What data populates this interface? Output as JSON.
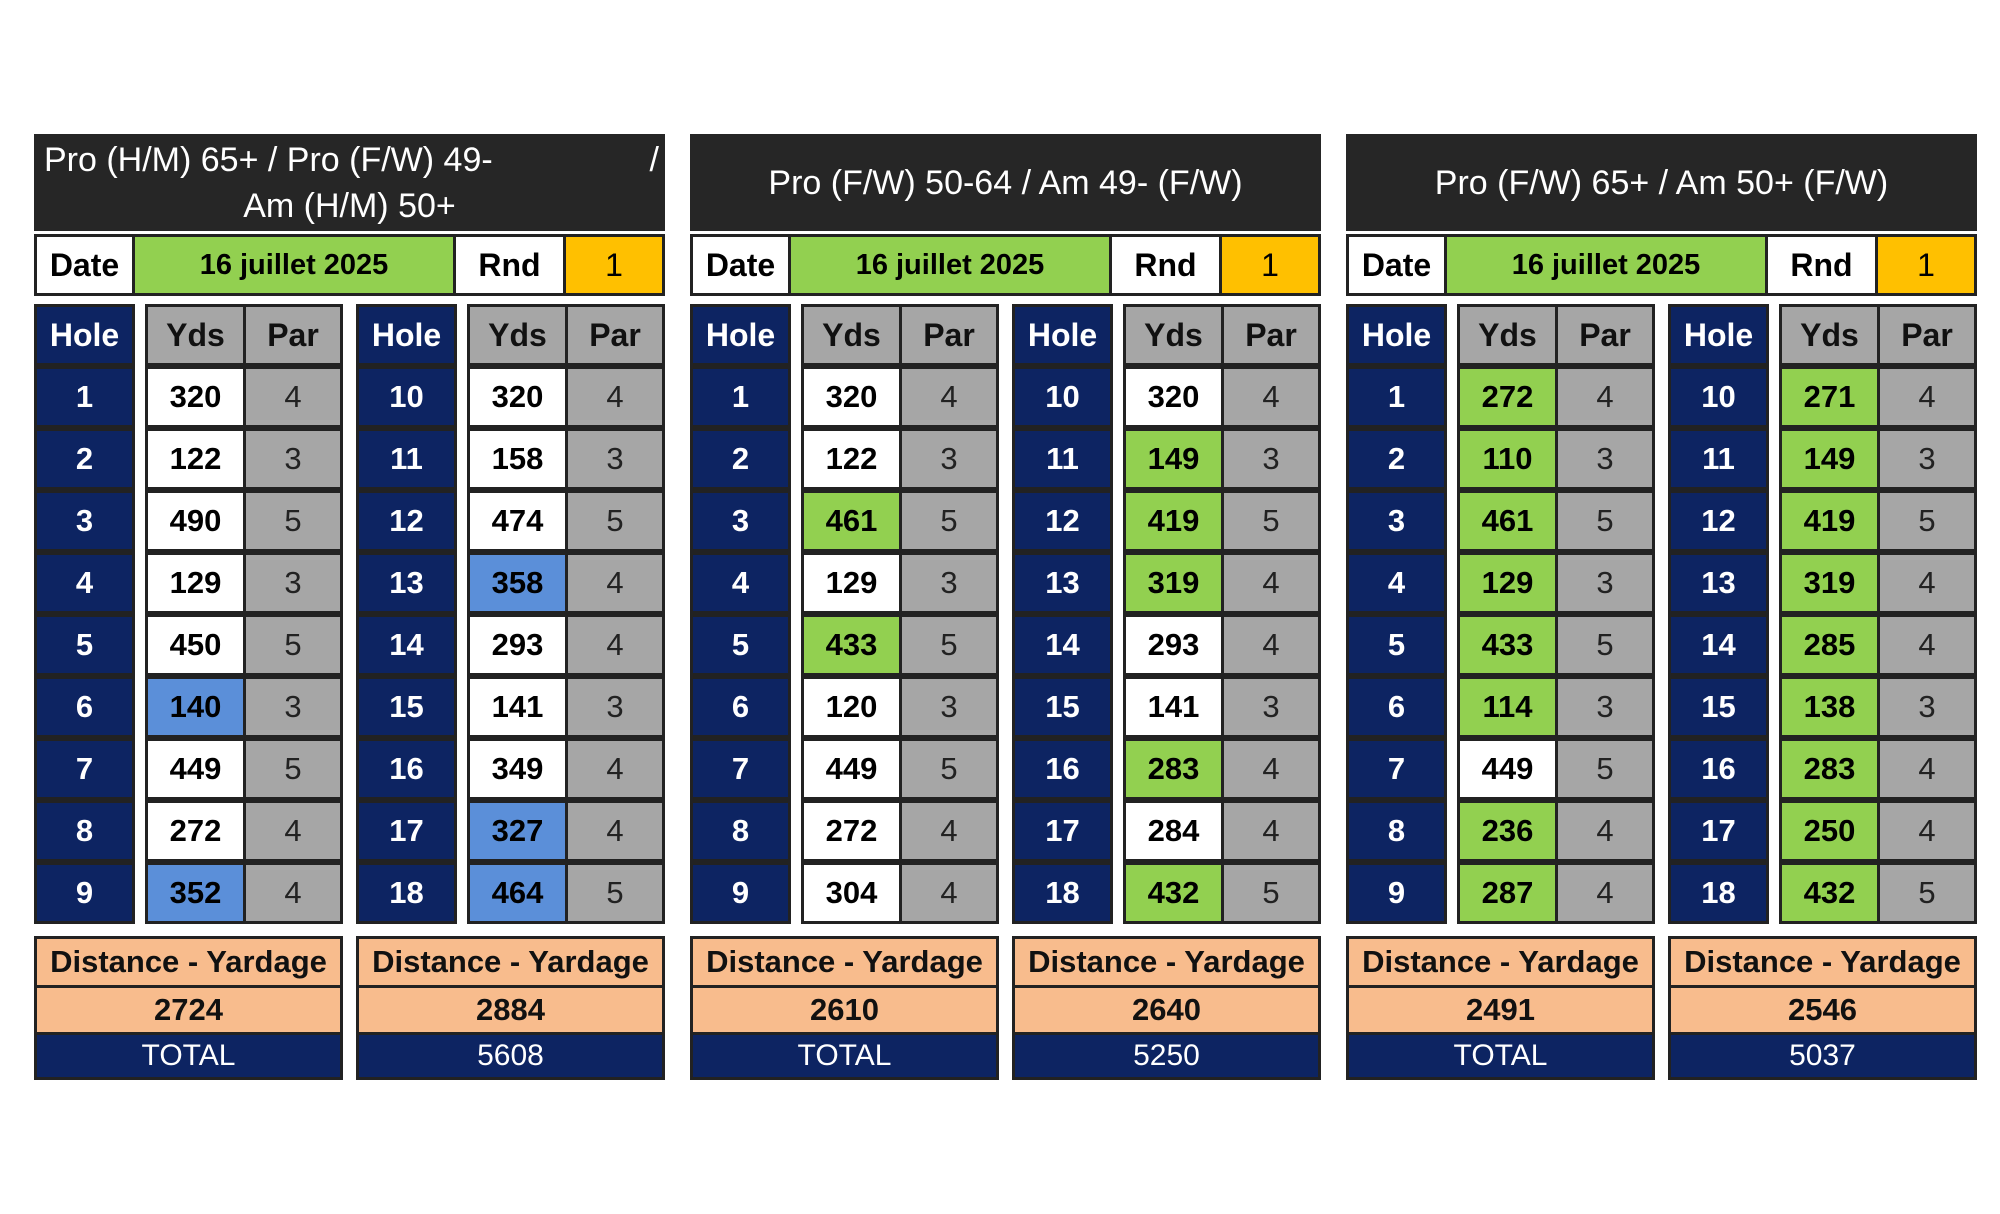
{
  "cards": [
    {
      "title_line1_left": "Pro (H/M) 65+ / Pro (F/W) 49-",
      "title_line1_right": "/",
      "title_line2": "Am (H/M) 50+",
      "date_label": "Date",
      "date_value": "16 juillet 2025",
      "rnd_label": "Rnd",
      "rnd_value": "1",
      "headers": {
        "hole": "Hole",
        "yds": "Yds",
        "par": "Par"
      },
      "front": [
        {
          "hole": "1",
          "yds": "320",
          "par": "4",
          "color": "w"
        },
        {
          "hole": "2",
          "yds": "122",
          "par": "3",
          "color": "w"
        },
        {
          "hole": "3",
          "yds": "490",
          "par": "5",
          "color": "w"
        },
        {
          "hole": "4",
          "yds": "129",
          "par": "3",
          "color": "w"
        },
        {
          "hole": "5",
          "yds": "450",
          "par": "5",
          "color": "w"
        },
        {
          "hole": "6",
          "yds": "140",
          "par": "3",
          "color": "b"
        },
        {
          "hole": "7",
          "yds": "449",
          "par": "5",
          "color": "w"
        },
        {
          "hole": "8",
          "yds": "272",
          "par": "4",
          "color": "w"
        },
        {
          "hole": "9",
          "yds": "352",
          "par": "4",
          "color": "b"
        }
      ],
      "back": [
        {
          "hole": "10",
          "yds": "320",
          "par": "4",
          "color": "w"
        },
        {
          "hole": "11",
          "yds": "158",
          "par": "3",
          "color": "w"
        },
        {
          "hole": "12",
          "yds": "474",
          "par": "5",
          "color": "w"
        },
        {
          "hole": "13",
          "yds": "358",
          "par": "4",
          "color": "b"
        },
        {
          "hole": "14",
          "yds": "293",
          "par": "4",
          "color": "w"
        },
        {
          "hole": "15",
          "yds": "141",
          "par": "3",
          "color": "w"
        },
        {
          "hole": "16",
          "yds": "349",
          "par": "4",
          "color": "w"
        },
        {
          "hole": "17",
          "yds": "327",
          "par": "4",
          "color": "b"
        },
        {
          "hole": "18",
          "yds": "464",
          "par": "5",
          "color": "b"
        }
      ],
      "distance_label": "Distance - Yardage",
      "front_total": "2724",
      "back_total": "2884",
      "total_label": "TOTAL",
      "grand_total": "5608"
    },
    {
      "title_line1_left": "Pro (F/W) 50-64 / Am 49- (F/W)",
      "title_line1_right": "",
      "title_line2": "",
      "date_label": "Date",
      "date_value": "16 juillet 2025",
      "rnd_label": "Rnd",
      "rnd_value": "1",
      "headers": {
        "hole": "Hole",
        "yds": "Yds",
        "par": "Par"
      },
      "front": [
        {
          "hole": "1",
          "yds": "320",
          "par": "4",
          "color": "w"
        },
        {
          "hole": "2",
          "yds": "122",
          "par": "3",
          "color": "w"
        },
        {
          "hole": "3",
          "yds": "461",
          "par": "5",
          "color": "g"
        },
        {
          "hole": "4",
          "yds": "129",
          "par": "3",
          "color": "w"
        },
        {
          "hole": "5",
          "yds": "433",
          "par": "5",
          "color": "g"
        },
        {
          "hole": "6",
          "yds": "120",
          "par": "3",
          "color": "w"
        },
        {
          "hole": "7",
          "yds": "449",
          "par": "5",
          "color": "w"
        },
        {
          "hole": "8",
          "yds": "272",
          "par": "4",
          "color": "w"
        },
        {
          "hole": "9",
          "yds": "304",
          "par": "4",
          "color": "w"
        }
      ],
      "back": [
        {
          "hole": "10",
          "yds": "320",
          "par": "4",
          "color": "w"
        },
        {
          "hole": "11",
          "yds": "149",
          "par": "3",
          "color": "g"
        },
        {
          "hole": "12",
          "yds": "419",
          "par": "5",
          "color": "g"
        },
        {
          "hole": "13",
          "yds": "319",
          "par": "4",
          "color": "g"
        },
        {
          "hole": "14",
          "yds": "293",
          "par": "4",
          "color": "w"
        },
        {
          "hole": "15",
          "yds": "141",
          "par": "3",
          "color": "w"
        },
        {
          "hole": "16",
          "yds": "283",
          "par": "4",
          "color": "g"
        },
        {
          "hole": "17",
          "yds": "284",
          "par": "4",
          "color": "w"
        },
        {
          "hole": "18",
          "yds": "432",
          "par": "5",
          "color": "g"
        }
      ],
      "distance_label": "Distance - Yardage",
      "front_total": "2610",
      "back_total": "2640",
      "total_label": "TOTAL",
      "grand_total": "5250"
    },
    {
      "title_line1_left": "Pro (F/W) 65+ / Am 50+ (F/W)",
      "title_line1_right": "",
      "title_line2": "",
      "date_label": "Date",
      "date_value": "16 juillet 2025",
      "rnd_label": "Rnd",
      "rnd_value": "1",
      "headers": {
        "hole": "Hole",
        "yds": "Yds",
        "par": "Par"
      },
      "front": [
        {
          "hole": "1",
          "yds": "272",
          "par": "4",
          "color": "g"
        },
        {
          "hole": "2",
          "yds": "110",
          "par": "3",
          "color": "g"
        },
        {
          "hole": "3",
          "yds": "461",
          "par": "5",
          "color": "g"
        },
        {
          "hole": "4",
          "yds": "129",
          "par": "3",
          "color": "g"
        },
        {
          "hole": "5",
          "yds": "433",
          "par": "5",
          "color": "g"
        },
        {
          "hole": "6",
          "yds": "114",
          "par": "3",
          "color": "g"
        },
        {
          "hole": "7",
          "yds": "449",
          "par": "5",
          "color": "w"
        },
        {
          "hole": "8",
          "yds": "236",
          "par": "4",
          "color": "g"
        },
        {
          "hole": "9",
          "yds": "287",
          "par": "4",
          "color": "g"
        }
      ],
      "back": [
        {
          "hole": "10",
          "yds": "271",
          "par": "4",
          "color": "g"
        },
        {
          "hole": "11",
          "yds": "149",
          "par": "3",
          "color": "g"
        },
        {
          "hole": "12",
          "yds": "419",
          "par": "5",
          "color": "g"
        },
        {
          "hole": "13",
          "yds": "319",
          "par": "4",
          "color": "g"
        },
        {
          "hole": "14",
          "yds": "285",
          "par": "4",
          "color": "g"
        },
        {
          "hole": "15",
          "yds": "138",
          "par": "3",
          "color": "g"
        },
        {
          "hole": "16",
          "yds": "283",
          "par": "4",
          "color": "g"
        },
        {
          "hole": "17",
          "yds": "250",
          "par": "4",
          "color": "g"
        },
        {
          "hole": "18",
          "yds": "432",
          "par": "5",
          "color": "g"
        }
      ],
      "distance_label": "Distance - Yardage",
      "front_total": "2491",
      "back_total": "2546",
      "total_label": "TOTAL",
      "grand_total": "5037"
    }
  ],
  "colors": {
    "navy": "#0d2462",
    "green": "#92d050",
    "blue": "#5b8fd9",
    "orange": "#ffc000",
    "peach": "#f8bc8d",
    "gray": "#a6a6a6",
    "title_bg": "#262626"
  }
}
